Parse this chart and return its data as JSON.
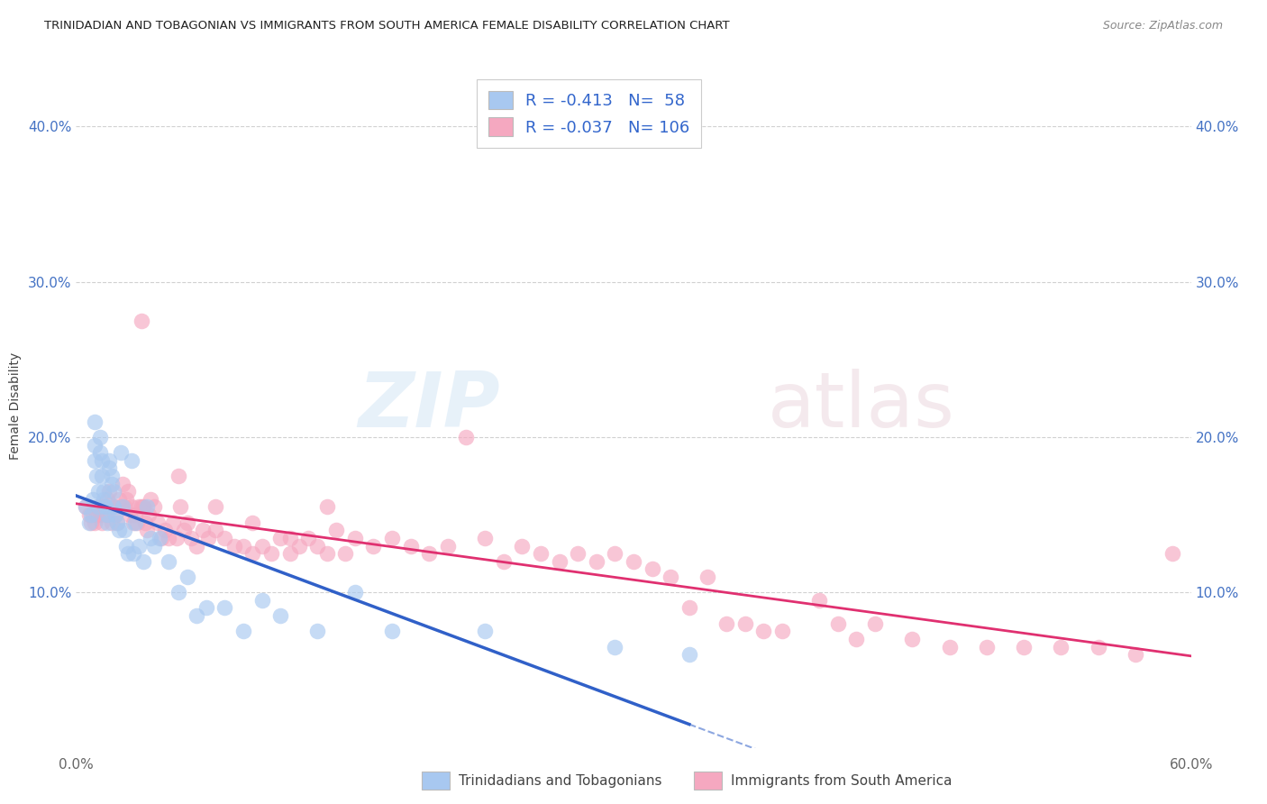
{
  "title": "TRINIDADIAN AND TOBAGONIAN VS IMMIGRANTS FROM SOUTH AMERICA FEMALE DISABILITY CORRELATION CHART",
  "source": "Source: ZipAtlas.com",
  "ylabel": "Female Disability",
  "xlim": [
    0.0,
    0.6
  ],
  "ylim": [
    0.0,
    0.44
  ],
  "yticks": [
    0.1,
    0.2,
    0.3,
    0.4
  ],
  "ytick_labels": [
    "10.0%",
    "20.0%",
    "30.0%",
    "40.0%"
  ],
  "xticks": [
    0.0,
    0.1,
    0.2,
    0.3,
    0.4,
    0.5,
    0.6
  ],
  "xtick_labels": [
    "0.0%",
    "",
    "",
    "",
    "",
    "",
    "60.0%"
  ],
  "blue_R": -0.413,
  "blue_N": 58,
  "pink_R": -0.037,
  "pink_N": 106,
  "blue_color": "#A8C8F0",
  "pink_color": "#F5A8C0",
  "blue_line_color": "#3060C8",
  "pink_line_color": "#E03070",
  "watermark_zip": "ZIP",
  "watermark_atlas": "atlas",
  "legend_label_blue": "Trinidadians and Tobagonians",
  "legend_label_pink": "Immigrants from South America",
  "blue_x": [
    0.005,
    0.007,
    0.008,
    0.009,
    0.01,
    0.01,
    0.01,
    0.011,
    0.012,
    0.012,
    0.013,
    0.013,
    0.014,
    0.014,
    0.015,
    0.015,
    0.016,
    0.016,
    0.017,
    0.017,
    0.018,
    0.018,
    0.019,
    0.019,
    0.02,
    0.02,
    0.021,
    0.022,
    0.023,
    0.024,
    0.025,
    0.026,
    0.027,
    0.028,
    0.03,
    0.031,
    0.032,
    0.034,
    0.036,
    0.038,
    0.04,
    0.042,
    0.045,
    0.05,
    0.055,
    0.06,
    0.065,
    0.07,
    0.08,
    0.09,
    0.1,
    0.11,
    0.13,
    0.15,
    0.17,
    0.22,
    0.29,
    0.33
  ],
  "blue_y": [
    0.155,
    0.145,
    0.15,
    0.16,
    0.21,
    0.195,
    0.185,
    0.175,
    0.165,
    0.155,
    0.2,
    0.19,
    0.185,
    0.175,
    0.165,
    0.16,
    0.155,
    0.155,
    0.15,
    0.145,
    0.185,
    0.18,
    0.175,
    0.17,
    0.165,
    0.155,
    0.15,
    0.145,
    0.14,
    0.19,
    0.155,
    0.14,
    0.13,
    0.125,
    0.185,
    0.125,
    0.145,
    0.13,
    0.12,
    0.155,
    0.135,
    0.13,
    0.135,
    0.12,
    0.1,
    0.11,
    0.085,
    0.09,
    0.09,
    0.075,
    0.095,
    0.085,
    0.075,
    0.1,
    0.075,
    0.075,
    0.065,
    0.06
  ],
  "pink_x": [
    0.005,
    0.007,
    0.008,
    0.009,
    0.01,
    0.011,
    0.012,
    0.013,
    0.014,
    0.015,
    0.016,
    0.017,
    0.018,
    0.019,
    0.02,
    0.021,
    0.022,
    0.023,
    0.024,
    0.025,
    0.026,
    0.027,
    0.028,
    0.029,
    0.03,
    0.031,
    0.032,
    0.033,
    0.034,
    0.035,
    0.036,
    0.037,
    0.038,
    0.039,
    0.04,
    0.042,
    0.044,
    0.046,
    0.048,
    0.05,
    0.052,
    0.054,
    0.056,
    0.058,
    0.06,
    0.062,
    0.065,
    0.068,
    0.071,
    0.075,
    0.08,
    0.085,
    0.09,
    0.095,
    0.1,
    0.105,
    0.11,
    0.115,
    0.12,
    0.125,
    0.13,
    0.135,
    0.14,
    0.145,
    0.15,
    0.16,
    0.17,
    0.18,
    0.19,
    0.2,
    0.21,
    0.22,
    0.23,
    0.24,
    0.25,
    0.26,
    0.27,
    0.28,
    0.29,
    0.3,
    0.31,
    0.32,
    0.33,
    0.34,
    0.35,
    0.36,
    0.37,
    0.38,
    0.4,
    0.41,
    0.42,
    0.43,
    0.45,
    0.47,
    0.49,
    0.51,
    0.53,
    0.55,
    0.57,
    0.59,
    0.035,
    0.055,
    0.075,
    0.095,
    0.115,
    0.135
  ],
  "pink_y": [
    0.155,
    0.15,
    0.145,
    0.15,
    0.145,
    0.15,
    0.155,
    0.15,
    0.145,
    0.155,
    0.15,
    0.16,
    0.165,
    0.145,
    0.155,
    0.15,
    0.145,
    0.16,
    0.155,
    0.17,
    0.155,
    0.16,
    0.165,
    0.15,
    0.155,
    0.145,
    0.15,
    0.145,
    0.155,
    0.275,
    0.155,
    0.145,
    0.14,
    0.15,
    0.16,
    0.155,
    0.145,
    0.135,
    0.14,
    0.135,
    0.145,
    0.135,
    0.155,
    0.14,
    0.145,
    0.135,
    0.13,
    0.14,
    0.135,
    0.14,
    0.135,
    0.13,
    0.13,
    0.125,
    0.13,
    0.125,
    0.135,
    0.125,
    0.13,
    0.135,
    0.13,
    0.125,
    0.14,
    0.125,
    0.135,
    0.13,
    0.135,
    0.13,
    0.125,
    0.13,
    0.2,
    0.135,
    0.12,
    0.13,
    0.125,
    0.12,
    0.125,
    0.12,
    0.125,
    0.12,
    0.115,
    0.11,
    0.09,
    0.11,
    0.08,
    0.08,
    0.075,
    0.075,
    0.095,
    0.08,
    0.07,
    0.08,
    0.07,
    0.065,
    0.065,
    0.065,
    0.065,
    0.065,
    0.06,
    0.125,
    0.155,
    0.175,
    0.155,
    0.145,
    0.135,
    0.155
  ]
}
